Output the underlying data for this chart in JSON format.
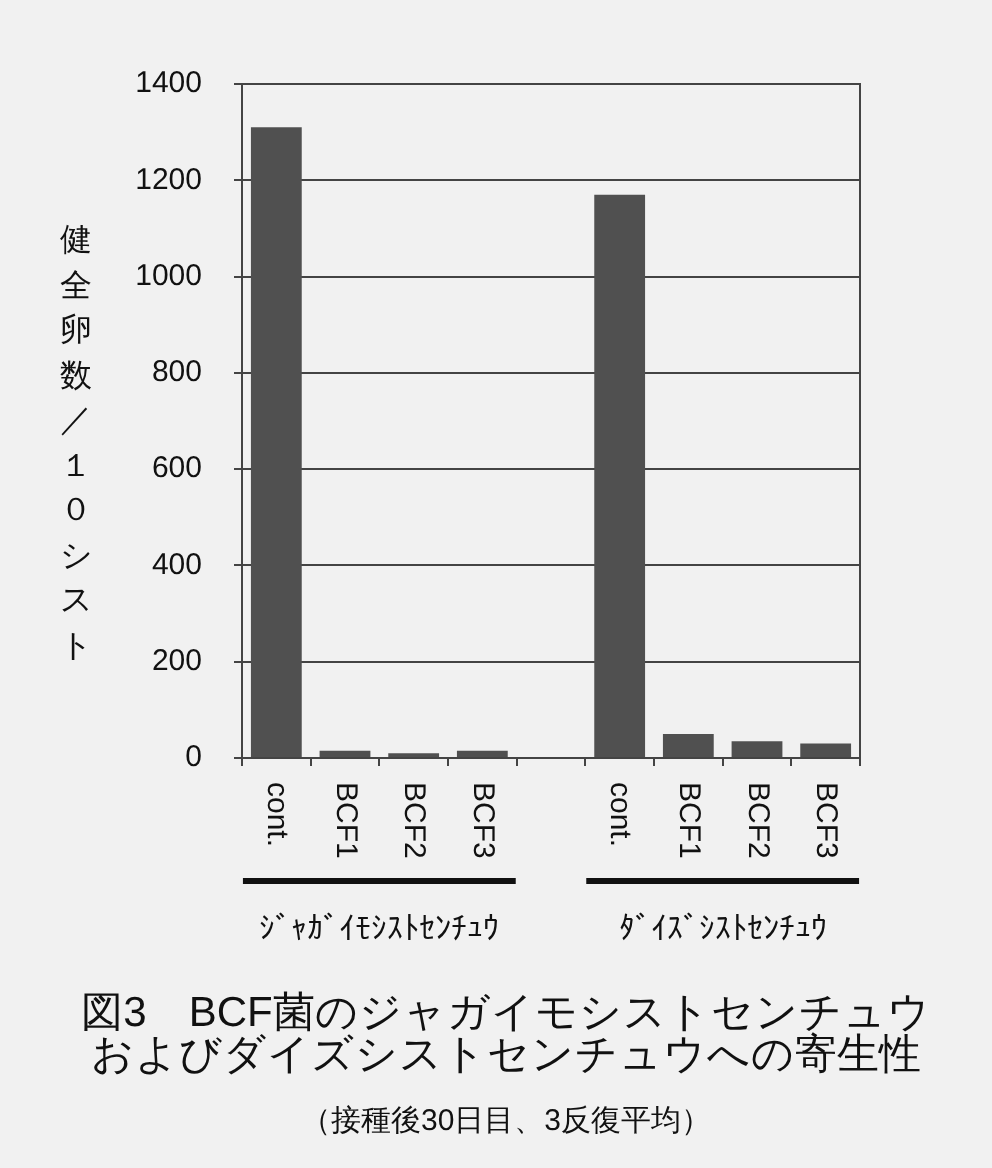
{
  "chart_data": {
    "type": "bar",
    "title": "図3　BCF菌のジャガイモシストセンチュウおよびダイズシストセンチュウへの寄生性",
    "subtitle": "（接種後30日目、3反復平均）",
    "ylabel": "健全卵数／１０シスト",
    "categories": [
      "cont.",
      "BCF1",
      "BCF2",
      "BCF3",
      null,
      "cont.",
      "BCF1",
      "BCF2",
      "BCF3"
    ],
    "values": [
      1310,
      15,
      10,
      15,
      null,
      1170,
      50,
      35,
      30
    ],
    "color": "#505050",
    "ylim": [
      0,
      1400
    ],
    "yticks": [
      0,
      200,
      400,
      600,
      800,
      1000,
      1200,
      1400
    ],
    "grid": "y",
    "annotations": [
      "ｼﾞｬｶﾞｲﾓｼｽﾄｾﾝﾁｭｳ",
      "ﾀﾞｲｽﾞｼｽﾄｾﾝﾁｭｳ"
    ]
  }
}
